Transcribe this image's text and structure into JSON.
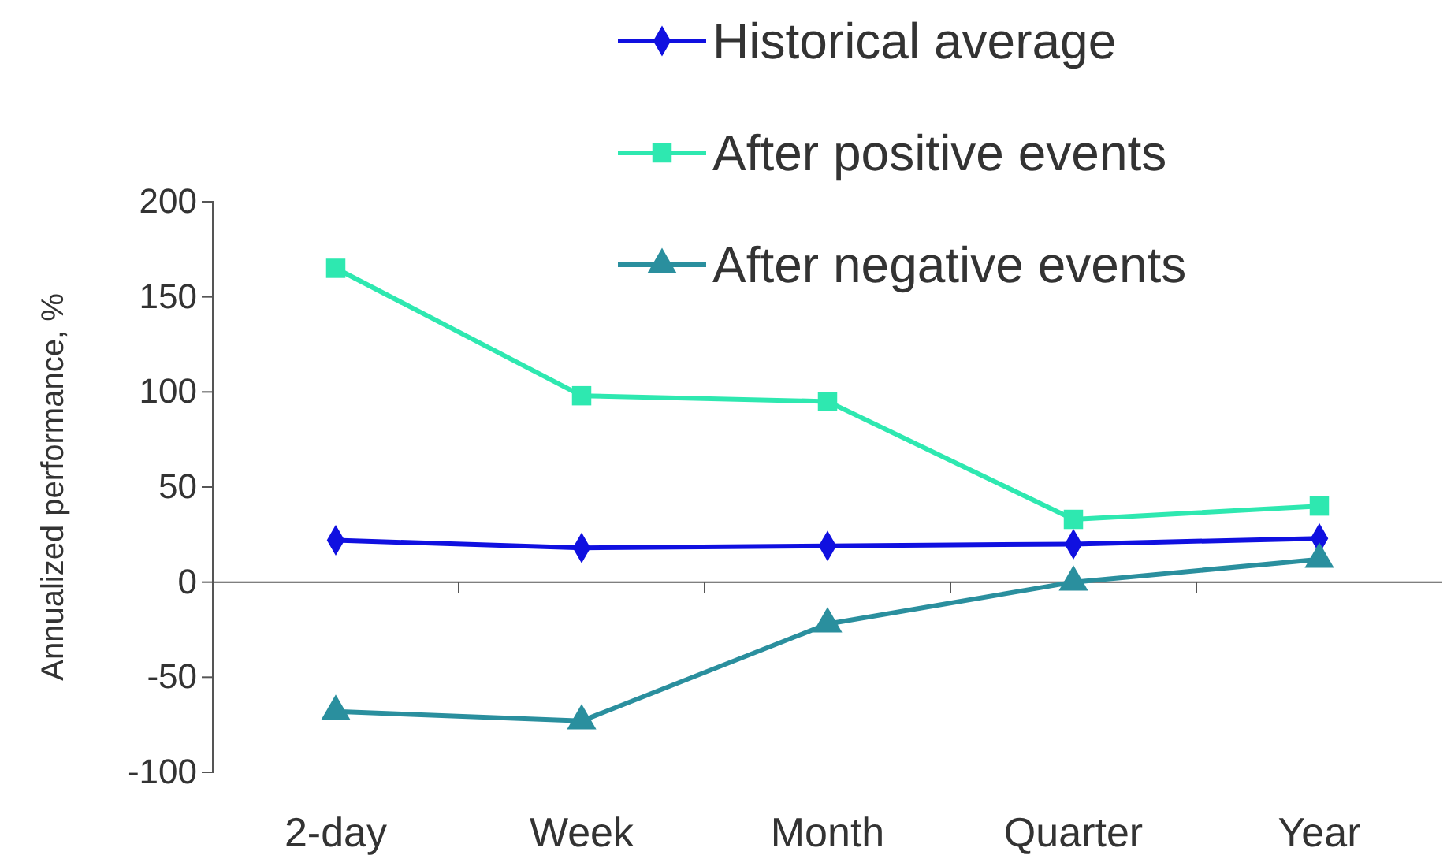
{
  "chart_data": {
    "type": "line",
    "ylabel": "Annualized performance, %",
    "categories": [
      "2-day",
      "Week",
      "Month",
      "Quarter",
      "Year"
    ],
    "series": [
      {
        "name": "Historical average",
        "color": "#1010e0",
        "marker": "diamond",
        "values": [
          22,
          18,
          19,
          20,
          23
        ]
      },
      {
        "name": "After positive events",
        "color": "#2ee8b0",
        "marker": "square",
        "values": [
          165,
          98,
          95,
          33,
          40
        ]
      },
      {
        "name": "After negative events",
        "color": "#2a8f9e",
        "marker": "triangle",
        "values": [
          -68,
          -73,
          -22,
          0,
          12
        ]
      }
    ],
    "ylim": [
      -100,
      200
    ],
    "yticks": [
      -100,
      -50,
      0,
      50,
      100,
      150,
      200
    ],
    "legend": "top right",
    "line_style": "solid"
  }
}
